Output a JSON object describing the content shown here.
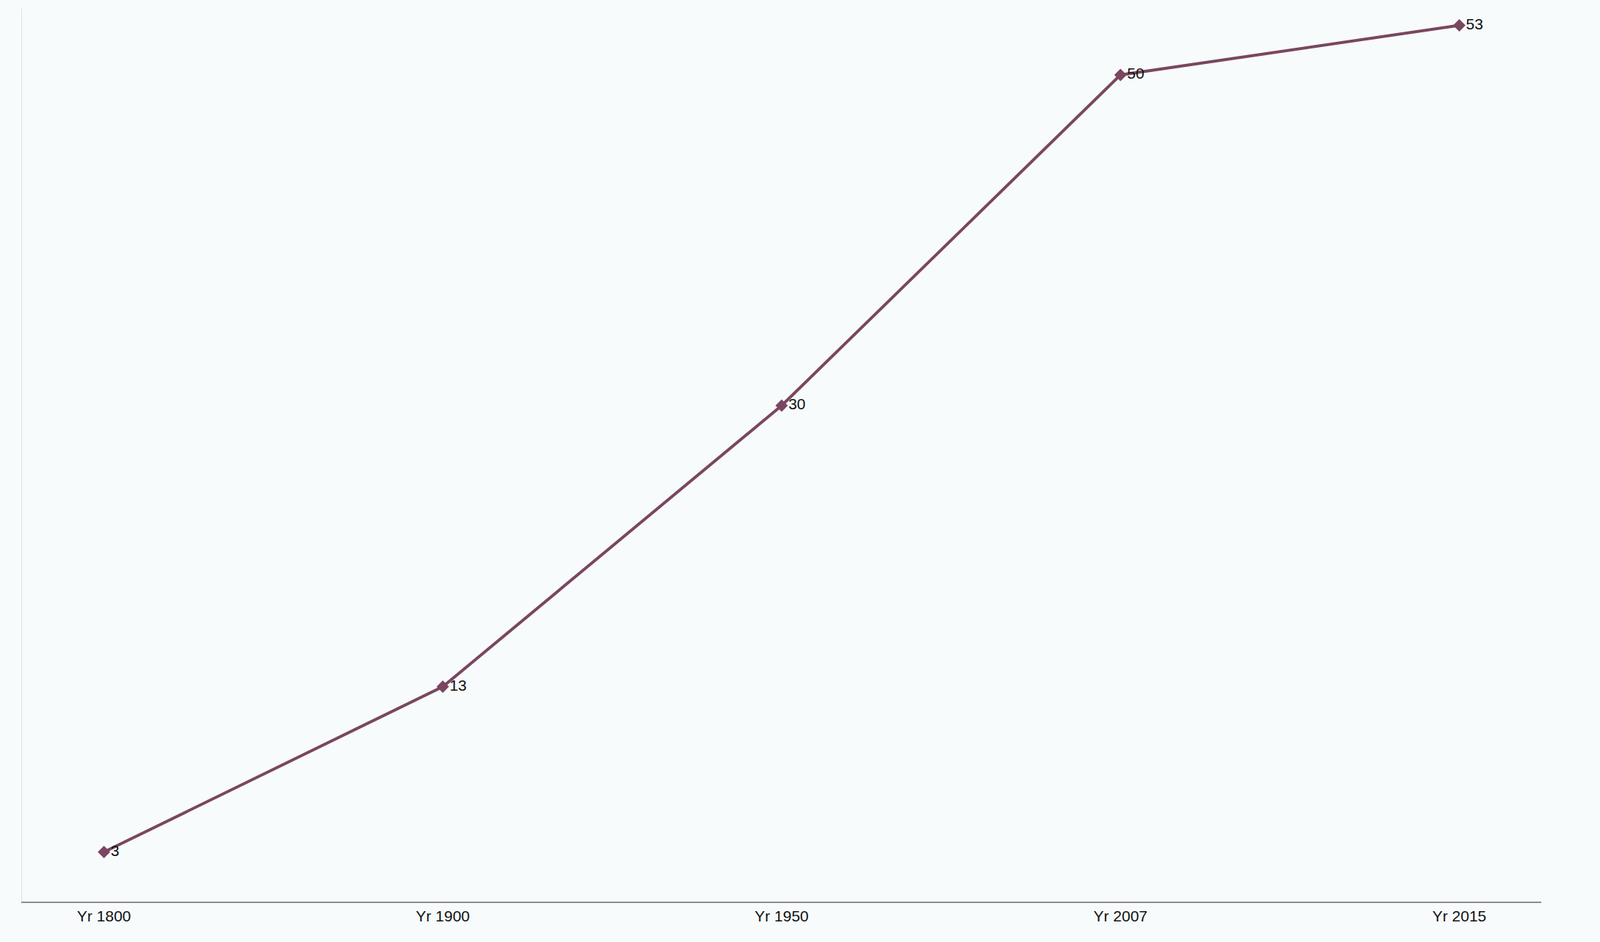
{
  "chart_data": {
    "type": "line",
    "categories": [
      "Yr 1800",
      "Yr 1900",
      "Yr 1950",
      "Yr 2007",
      "Yr 2015"
    ],
    "values": [
      3,
      13,
      30,
      50,
      53
    ],
    "color": "#7a4660",
    "marker": "diamond",
    "line_style": "solid",
    "ylim": [
      0,
      54
    ],
    "grid": false,
    "data_labels": true,
    "tick_labels": "x"
  }
}
